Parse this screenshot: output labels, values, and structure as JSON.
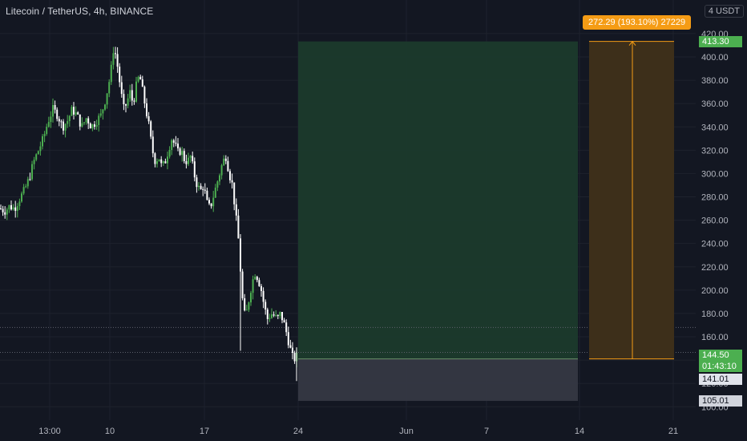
{
  "header": {
    "title": "Litecoin / TetherUS, 4h, BINANCE",
    "unit": "USDT"
  },
  "colors": {
    "background": "#131722",
    "up": "#26a69a",
    "up_body": "#4caf50",
    "down": "#ffffff",
    "grid": "#1e222d",
    "profit_zone": "#1b3a2c",
    "loss_zone": "#353843",
    "measure_fill": "#3d2f1a",
    "measure_line": "#f59c15",
    "current_price_bg": "#4caf50",
    "stop_bg": "#787b86",
    "target_bg": "#4caf50"
  },
  "chart_data": {
    "type": "candlestick",
    "symbol": "LTCUSDT",
    "interval": "4h",
    "exchange": "BINANCE",
    "y_axis": {
      "unit": "USDT",
      "ylim": [
        95,
        430
      ],
      "ticks": [
        100,
        120,
        140,
        160,
        180,
        200,
        220,
        240,
        260,
        280,
        300,
        320,
        340,
        360,
        380,
        400,
        420
      ],
      "tick_labels": [
        "100.00",
        "120.00",
        "140.00",
        "160.00",
        "180.00",
        "200.00",
        "220.00",
        "240.00",
        "260.00",
        "280.00",
        "300.00",
        "320.00",
        "340.00",
        "360.00",
        "380.00",
        "400.00",
        "420.00"
      ]
    },
    "x_axis": {
      "tick_labels": [
        "13:00",
        "10",
        "17",
        "24",
        "Jun",
        "7",
        "14",
        "21"
      ]
    },
    "price_path": [
      [
        0,
        270
      ],
      [
        6,
        268
      ],
      [
        12,
        272
      ],
      [
        18,
        270
      ],
      [
        24,
        278
      ],
      [
        30,
        285
      ],
      [
        36,
        295
      ],
      [
        42,
        310
      ],
      [
        48,
        320
      ],
      [
        54,
        330
      ],
      [
        60,
        345
      ],
      [
        66,
        355
      ],
      [
        72,
        350
      ],
      [
        78,
        340
      ],
      [
        84,
        345
      ],
      [
        90,
        355
      ],
      [
        96,
        350
      ],
      [
        102,
        340
      ],
      [
        108,
        348
      ],
      [
        114,
        340
      ],
      [
        120,
        345
      ],
      [
        126,
        350
      ],
      [
        132,
        365
      ],
      [
        138,
        385
      ],
      [
        142,
        410
      ],
      [
        146,
        395
      ],
      [
        150,
        375
      ],
      [
        154,
        355
      ],
      [
        158,
        360
      ],
      [
        162,
        370
      ],
      [
        166,
        360
      ],
      [
        170,
        375
      ],
      [
        174,
        385
      ],
      [
        178,
        370
      ],
      [
        182,
        355
      ],
      [
        186,
        340
      ],
      [
        190,
        320
      ],
      [
        194,
        310
      ],
      [
        198,
        315
      ],
      [
        202,
        305
      ],
      [
        206,
        310
      ],
      [
        210,
        320
      ],
      [
        214,
        330
      ],
      [
        218,
        325
      ],
      [
        222,
        318
      ],
      [
        226,
        320
      ],
      [
        230,
        312
      ],
      [
        234,
        310
      ],
      [
        238,
        315
      ],
      [
        242,
        300
      ],
      [
        246,
        290
      ],
      [
        250,
        285
      ],
      [
        254,
        290
      ],
      [
        258,
        275
      ],
      [
        262,
        270
      ],
      [
        266,
        280
      ],
      [
        270,
        290
      ],
      [
        274,
        300
      ],
      [
        278,
        310
      ],
      [
        282,
        315
      ],
      [
        286,
        300
      ],
      [
        290,
        290
      ],
      [
        294,
        265
      ],
      [
        298,
        240
      ],
      [
        302,
        195
      ],
      [
        306,
        175
      ],
      [
        310,
        190
      ],
      [
        314,
        205
      ],
      [
        318,
        215
      ],
      [
        322,
        210
      ],
      [
        326,
        200
      ],
      [
        330,
        185
      ],
      [
        334,
        175
      ],
      [
        338,
        180
      ],
      [
        342,
        178
      ],
      [
        346,
        175
      ],
      [
        350,
        180
      ],
      [
        354,
        172
      ],
      [
        358,
        162
      ],
      [
        362,
        150
      ],
      [
        366,
        140
      ],
      [
        370,
        143
      ],
      [
        373,
        144.5
      ]
    ],
    "last_price": 144.5,
    "horizontal_line": 168,
    "long_position": {
      "entry": 141.01,
      "target": 413.3,
      "stop": 105.01
    },
    "price_range_measure": {
      "from": 141.01,
      "to": 413.3,
      "label": "272.29 (193.10%) 27229"
    },
    "axis_tags": [
      {
        "name": "target-price-tag",
        "text": "413.30",
        "price": 413.3,
        "kind": "target"
      },
      {
        "name": "current-price-tag",
        "text": "144.50",
        "sub": "01:43:10",
        "price": 144.5,
        "kind": "current"
      },
      {
        "name": "entry-price-tag",
        "text": "141.01",
        "price": 141.01,
        "kind": "entry"
      },
      {
        "name": "stop-price-tag",
        "text": "105.01",
        "price": 105.01,
        "kind": "stop"
      }
    ]
  }
}
